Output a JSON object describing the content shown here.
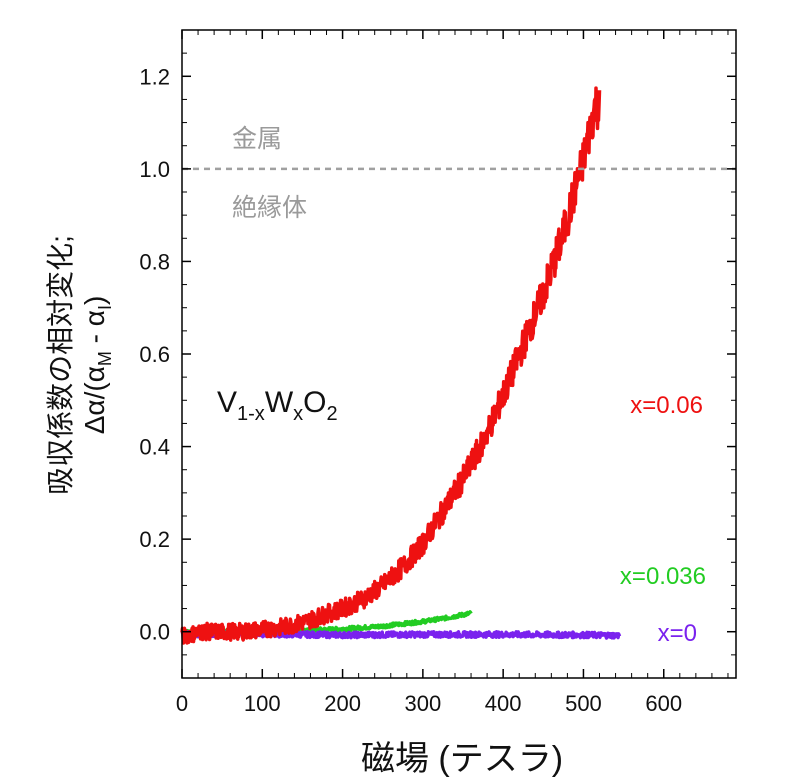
{
  "chart_data": {
    "type": "line",
    "xlabel": "磁場 (テスラ)",
    "ylabel_line1": "吸収係数の相対変化;",
    "ylabel_line2": "Δα/(α",
    "ylabel_sub_m": "M",
    "ylabel_mid": " - α",
    "ylabel_sub_i": "I",
    "ylabel_end": ")",
    "xlim": [
      0,
      690
    ],
    "ylim": [
      -0.1,
      1.3
    ],
    "xticks": [
      0,
      100,
      200,
      300,
      400,
      500,
      600
    ],
    "yticks": [
      0.0,
      0.2,
      0.4,
      0.6,
      0.8,
      1.0,
      1.2
    ],
    "ytick_labels": [
      "0.0",
      "0.2",
      "0.4",
      "0.6",
      "0.8",
      "1.0",
      "1.2"
    ],
    "grid": false,
    "reference_line": {
      "y": 1.0,
      "style": "dashed",
      "color": "#a0a0a0"
    },
    "annotations": {
      "above": "金属",
      "below": "絶縁体",
      "formula_base": "V",
      "formula_sub1": "1-x",
      "formula_w": "W",
      "formula_sub2": "x",
      "formula_o": "O",
      "formula_sub3": "2"
    },
    "series": [
      {
        "name": "x=0.06",
        "color": "#ee1111",
        "x": [
          0,
          25,
          50,
          75,
          100,
          125,
          150,
          175,
          200,
          225,
          250,
          275,
          300,
          325,
          350,
          375,
          400,
          425,
          450,
          475,
          500,
          510,
          515,
          520
        ],
        "y": [
          -0.01,
          0.0,
          0.0,
          0.0,
          0.005,
          0.01,
          0.02,
          0.035,
          0.05,
          0.07,
          0.1,
          0.14,
          0.19,
          0.26,
          0.33,
          0.41,
          0.51,
          0.62,
          0.73,
          0.86,
          1.02,
          1.1,
          1.14,
          1.13
        ],
        "noise": 0.018,
        "noise_end": 0.05
      },
      {
        "name": "x=0.036",
        "color": "#22cc22",
        "x": [
          0,
          50,
          100,
          150,
          200,
          250,
          300,
          330,
          360
        ],
        "y": [
          0.0,
          0.0,
          0.0,
          0.003,
          0.006,
          0.012,
          0.022,
          0.03,
          0.04
        ],
        "noise": 0.004,
        "noise_end": 0.004
      },
      {
        "name": "x=0",
        "color": "#7a22ee",
        "x": [
          0,
          100,
          200,
          300,
          400,
          500,
          545
        ],
        "y": [
          -0.005,
          -0.005,
          -0.007,
          -0.006,
          -0.006,
          -0.007,
          -0.008
        ],
        "noise": 0.006,
        "noise_end": 0.006
      }
    ]
  }
}
